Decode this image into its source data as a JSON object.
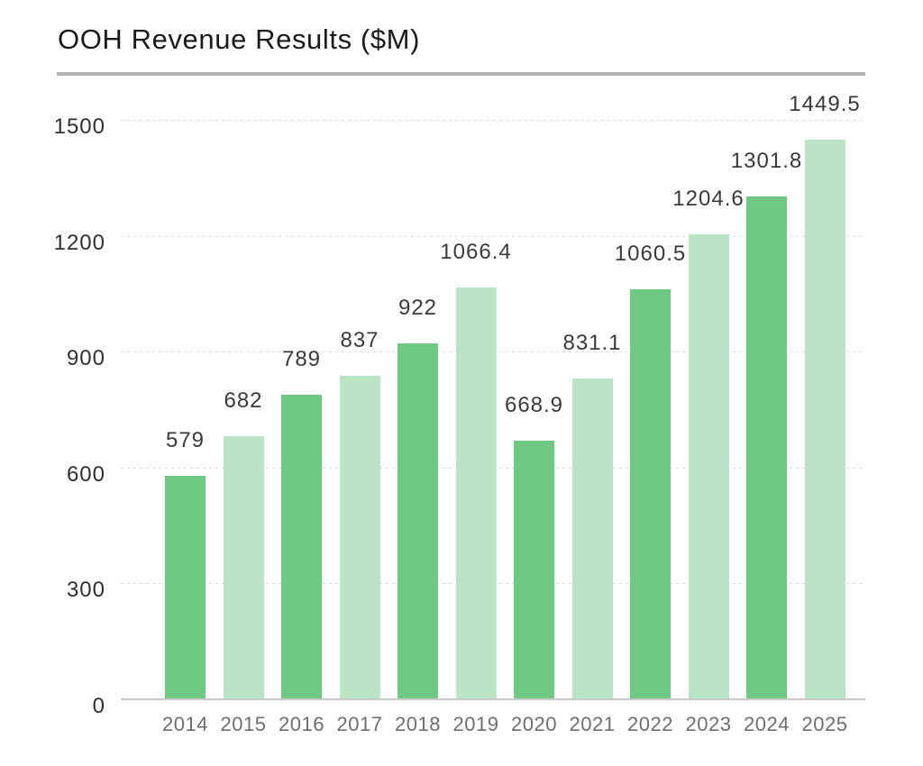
{
  "title": "OOH Revenue Results ($M)",
  "colors": {
    "title_text": "#1a1a1a",
    "divider": "#b3b3b3",
    "grid": "#d9d9d9",
    "axis_line": "#c9c9c9",
    "tick_text": "#303030",
    "x_text": "#6e6e6e",
    "value_text": "#3a3a3a",
    "bar_dark_green": "#6fc884",
    "bar_light_green": "#bbe4c7"
  },
  "chart_data": {
    "type": "bar",
    "title": "OOH Revenue Results ($M)",
    "categories": [
      "2014",
      "2015",
      "2016",
      "2017",
      "2018",
      "2019",
      "2020",
      "2021",
      "2022",
      "2023",
      "2024",
      "2025"
    ],
    "values": [
      579,
      682,
      789,
      837,
      922,
      1066.4,
      668.9,
      831.1,
      1060.5,
      1204.6,
      1301.8,
      1449.5
    ],
    "value_labels": [
      "579",
      "682",
      "789",
      "837",
      "922",
      "1066.4",
      "668.9",
      "831.1",
      "1060.5",
      "1204.6",
      "1301.8",
      "1449.5"
    ],
    "bar_colors": [
      "#6fc884",
      "#bbe4c7",
      "#6fc884",
      "#bbe4c7",
      "#6fc884",
      "#bbe4c7",
      "#6fc884",
      "#bbe4c7",
      "#6fc884",
      "#bbe4c7",
      "#6fc884",
      "#bbe4c7"
    ],
    "y_ticks": [
      0,
      300,
      600,
      900,
      1200,
      1500
    ],
    "ylim": [
      0,
      1500
    ],
    "xlabel": "",
    "ylabel": "",
    "grid": "horizontal-dotted",
    "legend": "none",
    "value_labels_position": "above-bars"
  }
}
